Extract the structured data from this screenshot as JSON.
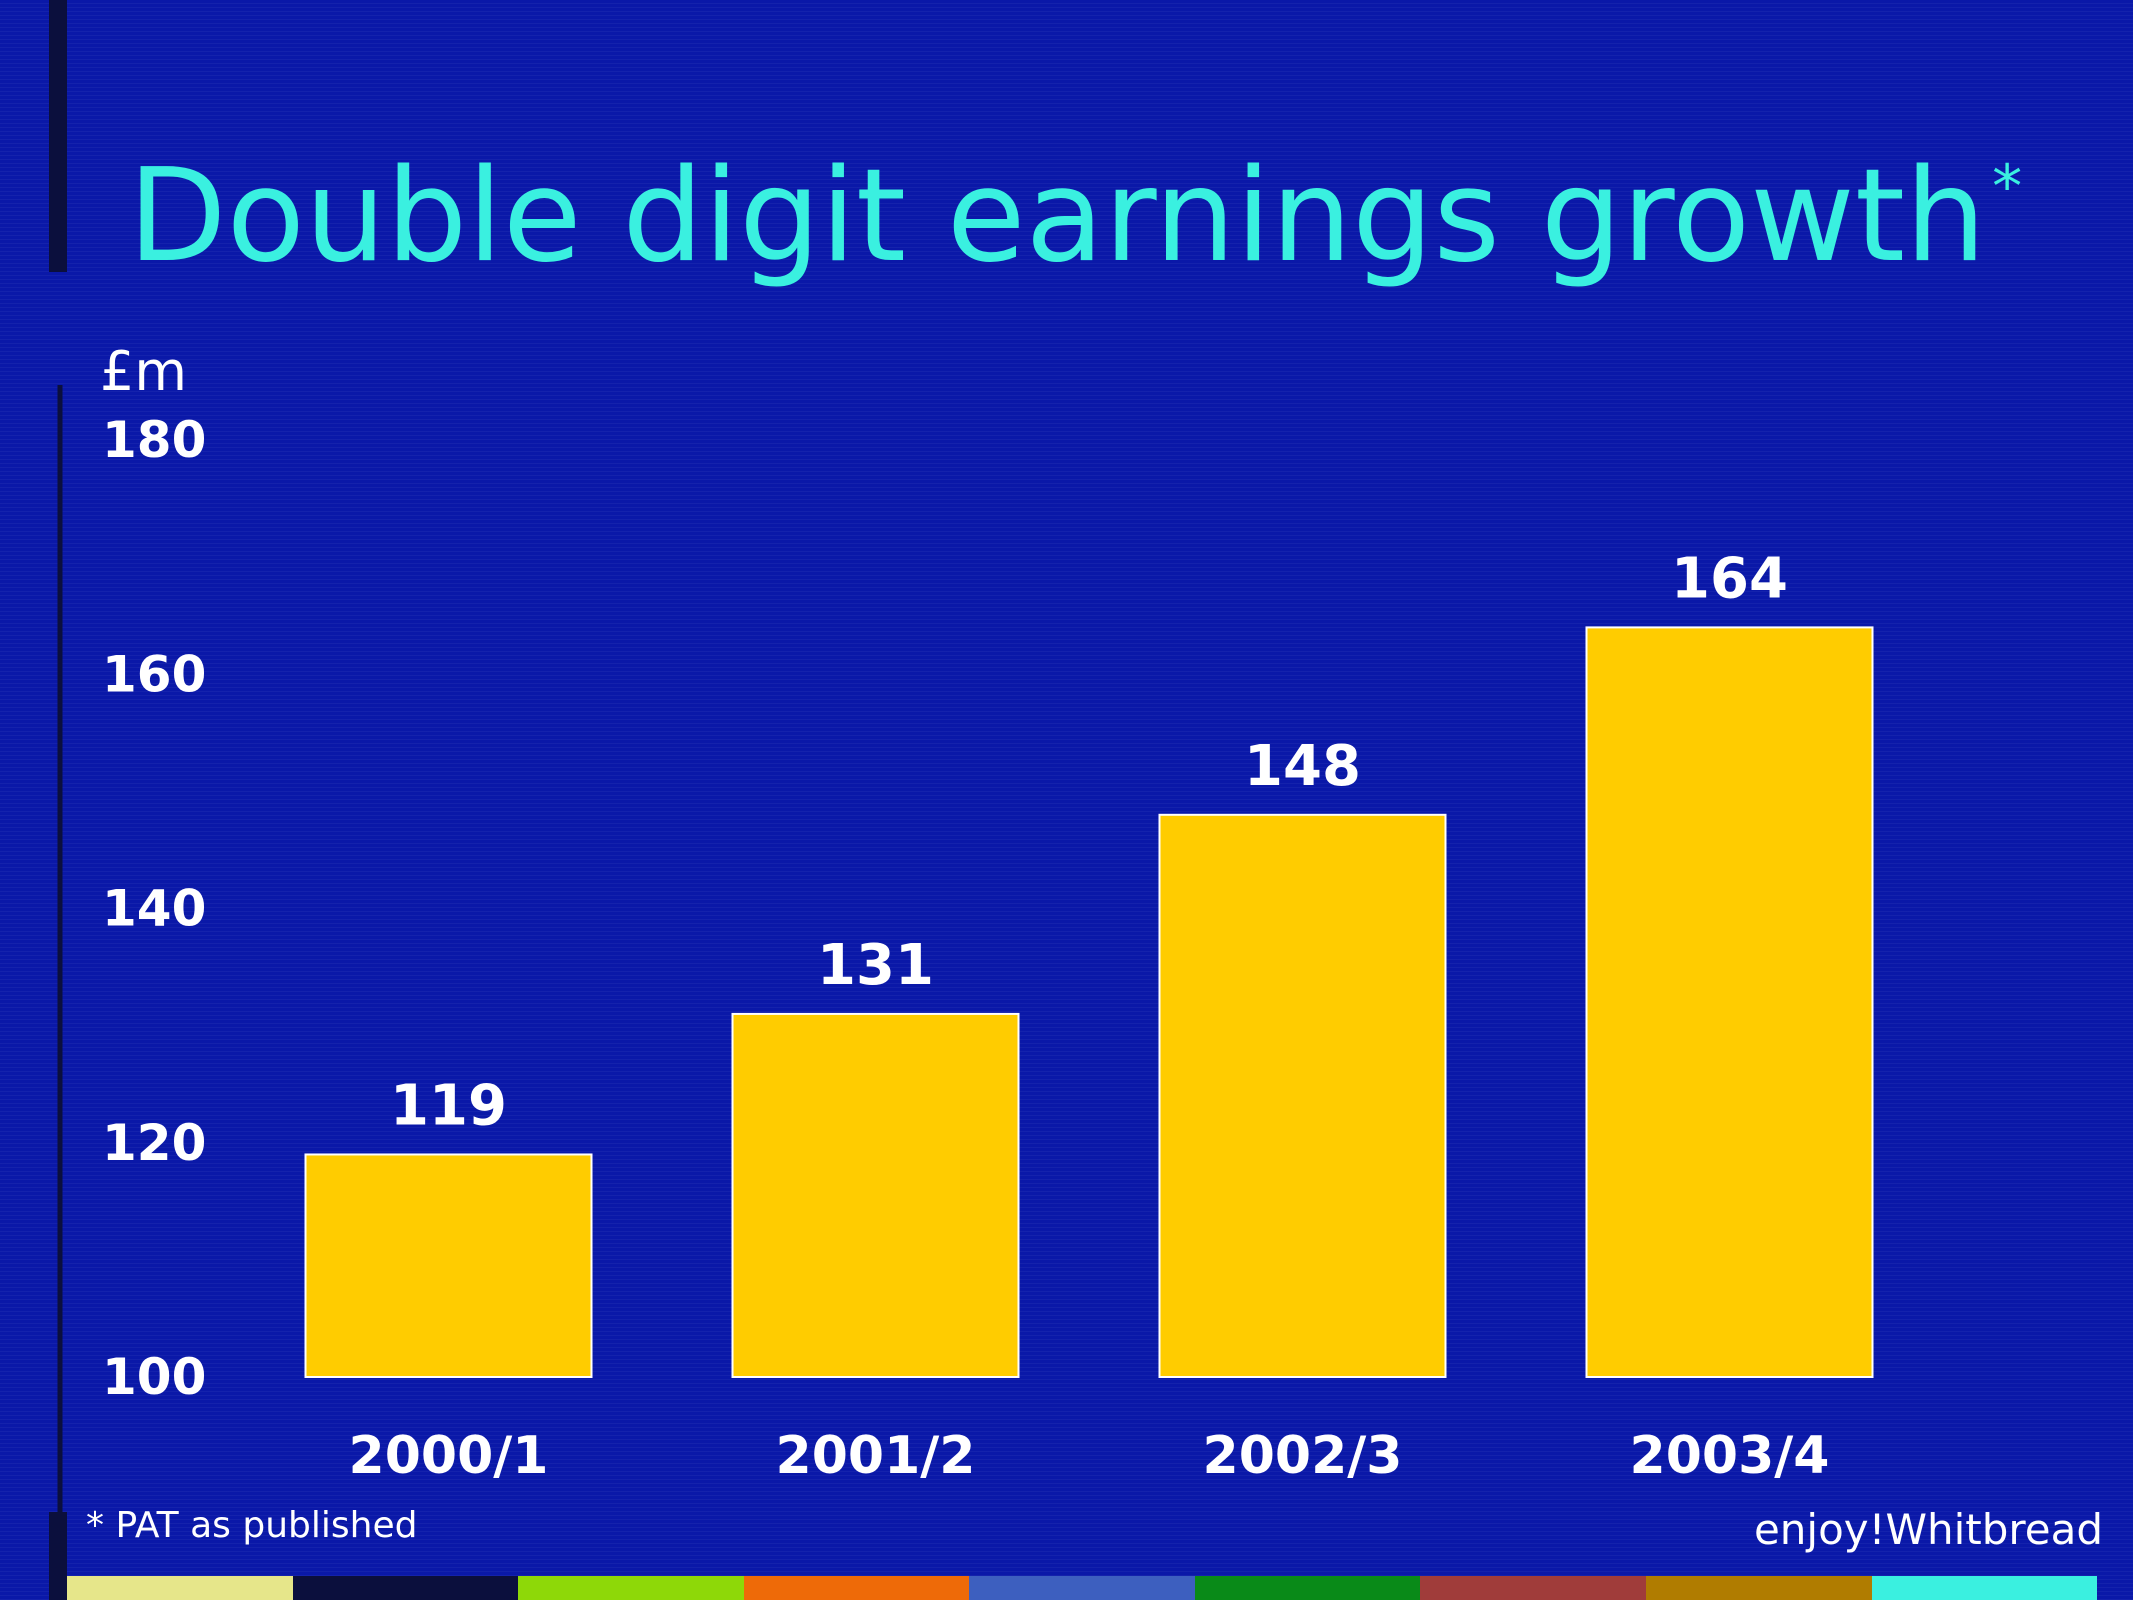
{
  "slide": {
    "title": "Double digit earnings growth",
    "title_marker": "*",
    "footnote": "* PAT as published",
    "brand": "enjoy!Whitbread"
  },
  "colors": {
    "background": "#0a18a8",
    "title": "#3af0e0",
    "bar": "#ffcc00",
    "bar_outline": "#ffffff",
    "text": "#ffffff",
    "footer_stripes": [
      "#e6e68a",
      "#0b0f3d",
      "#8ed808",
      "#ee6a08",
      "#3d5fbf",
      "#098a18",
      "#a03c3a",
      "#b07c00",
      "#3af0e0"
    ]
  },
  "chart_data": {
    "type": "bar",
    "categories": [
      "2000/1",
      "2001/2",
      "2002/3",
      "2003/4"
    ],
    "values": [
      119,
      131,
      148,
      164
    ],
    "data_labels": [
      "119",
      "131",
      "148",
      "164"
    ],
    "unit_label": "£m",
    "ylim": [
      100,
      180
    ],
    "yticks": [
      100,
      120,
      140,
      160,
      180
    ],
    "grid": false,
    "legend": "none"
  }
}
